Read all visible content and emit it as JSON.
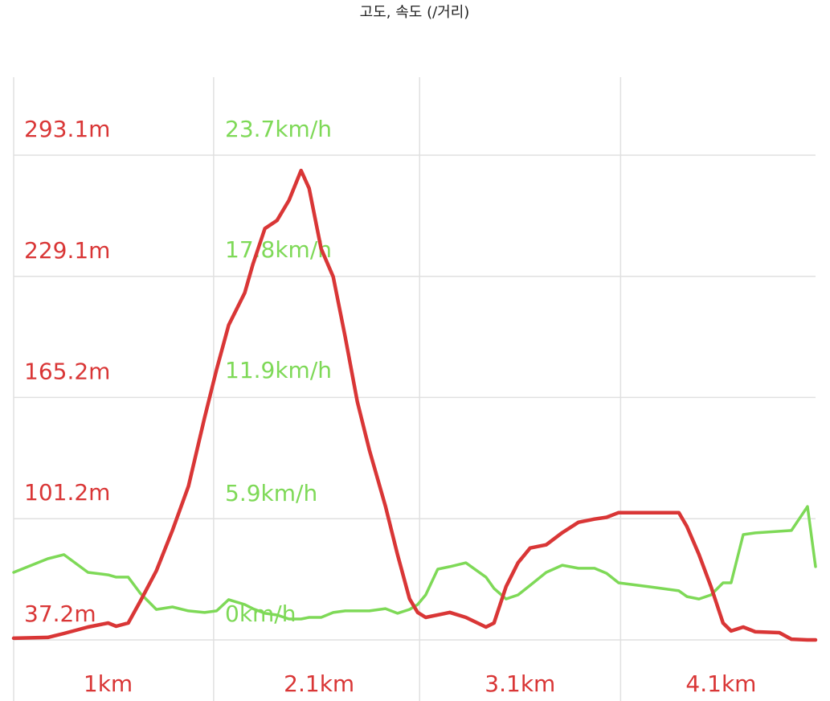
{
  "chart_data": {
    "type": "line",
    "title": "고도, 속도 (/거리)",
    "x": [
      0.5,
      0.67,
      0.75,
      0.87,
      0.97,
      1.01,
      1.07,
      1.13,
      1.21,
      1.29,
      1.37,
      1.45,
      1.51,
      1.57,
      1.65,
      1.69,
      1.75,
      1.81,
      1.87,
      1.93,
      1.97,
      2.03,
      2.09,
      2.15,
      2.21,
      2.27,
      2.35,
      2.41,
      2.47,
      2.51,
      2.55,
      2.61,
      2.67,
      2.75,
      2.85,
      2.89,
      2.95,
      3.01,
      3.07,
      3.15,
      3.23,
      3.31,
      3.39,
      3.45,
      3.51,
      3.67,
      3.81,
      3.85,
      3.91,
      3.97,
      4.03,
      4.07,
      4.13,
      4.19,
      4.31,
      4.37,
      4.45,
      4.49
    ],
    "series": [
      {
        "color": "#7ed957",
        "axis": "y2",
        "values": [
          3.3,
          3.97,
          4.17,
          3.3,
          3.18,
          3.07,
          3.07,
          2.28,
          1.49,
          1.61,
          1.42,
          1.34,
          1.42,
          1.97,
          1.73,
          1.53,
          1.3,
          1.22,
          1.02,
          1.02,
          1.1,
          1.1,
          1.34,
          1.42,
          1.42,
          1.42,
          1.53,
          1.3,
          1.49,
          1.73,
          2.2,
          3.46,
          3.58,
          3.77,
          3.07,
          2.52,
          2.0,
          2.2,
          2.67,
          3.3,
          3.65,
          3.5,
          3.5,
          3.26,
          2.79,
          2.59,
          2.4,
          2.12,
          2.0,
          2.2,
          2.79,
          2.79,
          5.15,
          5.23,
          5.31,
          5.35,
          6.52,
          3.58
        ]
      },
      {
        "color": "#d93636",
        "values": [
          38.1,
          38.5,
          40.6,
          44.0,
          46.1,
          44.4,
          46.1,
          57.6,
          73.7,
          95.0,
          118.4,
          154.5,
          180.0,
          203.4,
          220.4,
          235.3,
          254.4,
          258.6,
          269.3,
          285.0,
          275.6,
          243.7,
          228.9,
          197.0,
          163.0,
          137.5,
          107.8,
          82.3,
          58.9,
          51.7,
          49.1,
          50.4,
          51.7,
          49.1,
          44.0,
          46.1,
          65.3,
          78.0,
          85.7,
          87.4,
          93.8,
          99.3,
          101.0,
          101.9,
          104.4,
          104.4,
          104.4,
          97.1,
          82.3,
          65.3,
          46.1,
          41.9,
          44.0,
          41.5,
          41.0,
          37.6,
          37.2,
          37.2
        ]
      }
    ],
    "xlim": [
      0.5,
      4.49
    ],
    "xticks": [
      {
        "value": 0.97,
        "label": "1km"
      },
      {
        "value": 2.02,
        "label": "2.1km"
      },
      {
        "value": 3.02,
        "label": "3.1km"
      },
      {
        "value": 4.02,
        "label": "4.1km"
      }
    ],
    "ylim": [
      37.2,
      293.1
    ],
    "yticks": [
      {
        "value": 37.2,
        "label": "37.2m"
      },
      {
        "value": 101.2,
        "label": "101.2m"
      },
      {
        "value": 165.2,
        "label": "165.2m"
      },
      {
        "value": 229.1,
        "label": "229.1m"
      },
      {
        "value": 293.1,
        "label": "293.1m"
      }
    ],
    "y2lim": [
      0,
      23.7
    ],
    "y2ticks": [
      {
        "value": 0,
        "label": "0km/h"
      },
      {
        "value": 5.9,
        "label": "5.9km/h"
      },
      {
        "value": 11.9,
        "label": "11.9km/h"
      },
      {
        "value": 17.8,
        "label": "17.8km/h"
      },
      {
        "value": 23.7,
        "label": "23.7km/h"
      }
    ],
    "grid": true
  }
}
